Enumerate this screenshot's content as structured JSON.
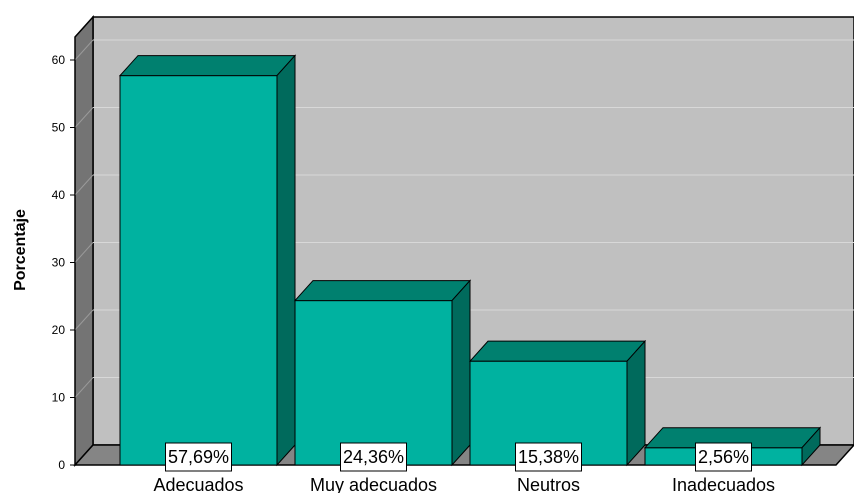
{
  "chart_data": {
    "type": "bar",
    "style": "3d",
    "categories": [
      "Adecuados",
      "Muy adecuados",
      "Neutros",
      "Inadecuados"
    ],
    "values": [
      57.69,
      24.36,
      15.38,
      2.56
    ],
    "data_labels": [
      "57,69%",
      "24,36%",
      "15,38%",
      "2,56%"
    ],
    "title": "",
    "xlabel": "",
    "ylabel": "Porcentaje",
    "ylim": [
      0,
      60
    ],
    "yticks": [
      0,
      10,
      20,
      30,
      40,
      50,
      60
    ],
    "grid": true,
    "legend": "none",
    "colors": {
      "bar_front": "#00B2A0",
      "bar_top": "#00806F",
      "bar_side": "#006A5C",
      "back_wall": "#C0C0C0",
      "floor": "#858585",
      "left_wall": "#747474"
    }
  }
}
